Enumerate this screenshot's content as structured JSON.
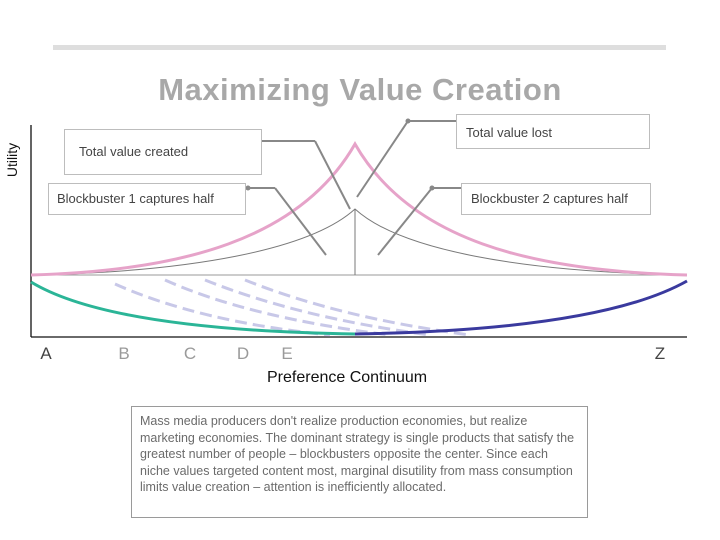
{
  "title": "Maximizing Value Creation",
  "y_axis_label": "Utility",
  "x_axis_label": "Preference Continuum",
  "x_ticks": [
    "A",
    "B",
    "C",
    "D",
    "E",
    "Z"
  ],
  "callouts": {
    "total_value_created": "Total value created",
    "total_value_lost": "Total value lost",
    "blockbuster_1": "Blockbuster 1 captures half",
    "blockbuster_2": "Blockbuster 2 captures half"
  },
  "description": "Mass media producers don't realize production economies, but realize marketing economies. The dominant strategy is single products that satisfy the greatest number of people – blockbusters opposite the center. Since each niche values targeted content most, marginal disutility from mass consumption limits value creation – attention is inefficiently allocated.",
  "colors": {
    "total_value_curve": "#e6a3c9",
    "captured_curve": "#7a7a7a",
    "blockbuster_1_utility": "#2bb597",
    "blockbuster_2_utility": "#3a3a9e",
    "niche_utility_dashed": "#c8c8e8"
  }
}
